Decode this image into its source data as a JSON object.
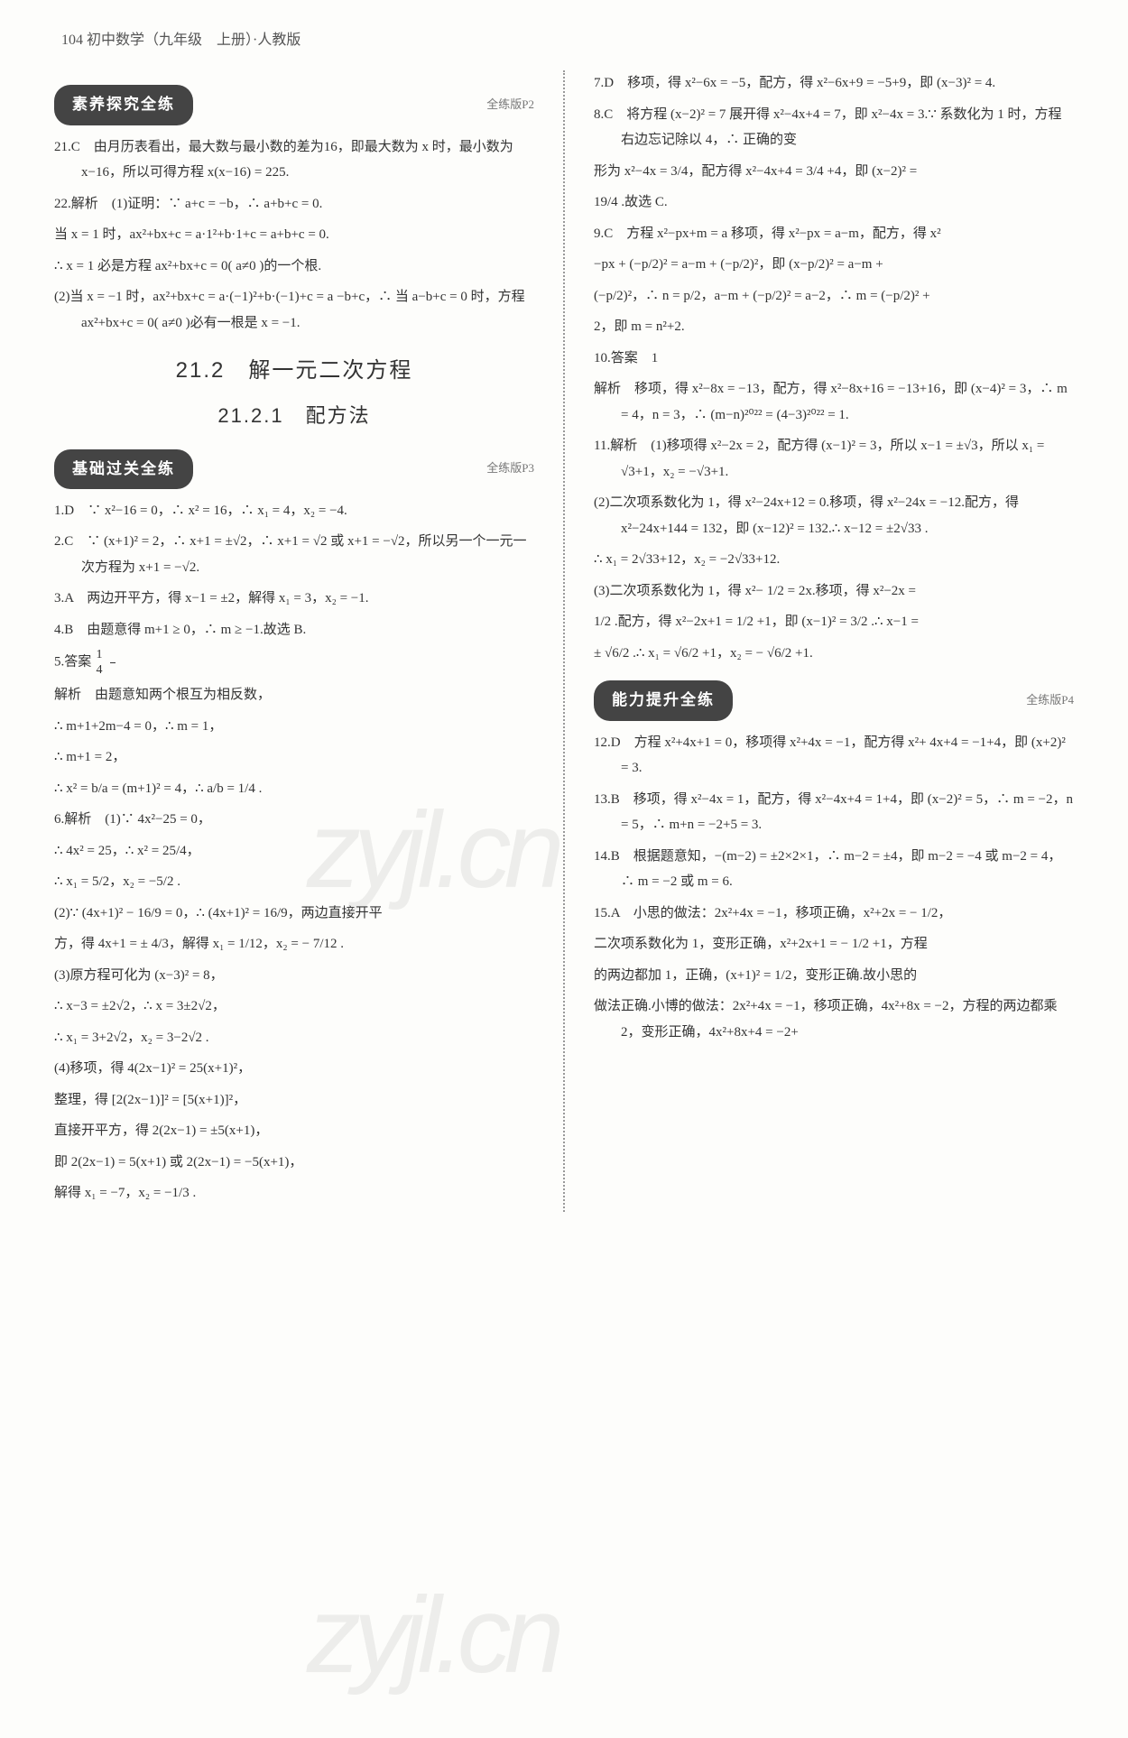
{
  "header": "104 初中数学（九年级　上册）·人教版",
  "watermark": "zyjl.cn",
  "left": {
    "badge1": {
      "label": "素养探究全练",
      "ref": "全练版P2"
    },
    "q21": "21.C　由月历表看出，最大数与最小数的差为16，即最大数为 x 时，最小数为 x−16，所以可得方程 x(x−16) = 225.",
    "q22a": "22.解析　(1)证明：∵ a+c = −b，∴ a+b+c = 0.",
    "q22b": "当 x = 1 时，ax²+bx+c = a·1²+b·1+c = a+b+c = 0.",
    "q22c": "∴ x = 1 必是方程 ax²+bx+c = 0( a≠0 )的一个根.",
    "q22d": "(2)当 x = −1 时，ax²+bx+c = a·(−1)²+b·(−1)+c = a −b+c，∴ 当 a−b+c = 0 时，方程 ax²+bx+c = 0( a≠0 )必有一根是 x = −1.",
    "title": "21.2　解一元二次方程",
    "subtitle": "21.2.1　配方法",
    "badge2": {
      "label": "基础过关全练",
      "ref": "全练版P3"
    },
    "q1": "1.D　∵ x²−16 = 0，∴ x² = 16，∴ x₁ = 4，x₂ = −4.",
    "q2": "2.C　∵ (x+1)² = 2，∴ x+1 = ±√2，∴ x+1 = √2 或 x+1 = −√2，所以另一个一元一次方程为 x+1 = −√2.",
    "q3": "3.A　两边开平方，得 x−1 = ±2，解得 x₁ = 3，x₂ = −1.",
    "q4": "4.B　由题意得 m+1 ≥ 0，∴ m ≥ −1.故选 B.",
    "q5a_label": "5.答案　",
    "q5a_frac_n": "1",
    "q5a_frac_d": "4",
    "q5b": "解析　由题意知两个根互为相反数，",
    "q5c": "∴ m+1+2m−4 = 0，∴ m = 1，",
    "q5d": "∴ m+1 = 2，",
    "q5e": "∴ x² = b/a = (m+1)² = 4，∴ a/b = 1/4 .",
    "q6a": "6.解析　(1)∵ 4x²−25 = 0，",
    "q6b": "∴ 4x² = 25，∴ x² = 25/4，",
    "q6c": "∴ x₁ = 5/2，x₂ = −5/2 .",
    "q6d": "(2)∵ (4x+1)² − 16/9 = 0，∴ (4x+1)² = 16/9，两边直接开平",
    "q6e": "方，得 4x+1 = ± 4/3，解得 x₁ = 1/12，x₂ = − 7/12 .",
    "q6f": "(3)原方程可化为 (x−3)² = 8，",
    "q6g": "∴ x−3 = ±2√2，∴ x = 3±2√2，",
    "q6h": "∴ x₁ = 3+2√2，x₂ = 3−2√2 .",
    "q6i": "(4)移项，得 4(2x−1)² = 25(x+1)²，",
    "q6j": "整理，得 [2(2x−1)]² = [5(x+1)]²，",
    "q6k": "直接开平方，得 2(2x−1) = ±5(x+1)，",
    "q6l": "即 2(2x−1) = 5(x+1) 或 2(2x−1) = −5(x+1)，",
    "q6m": "解得 x₁ = −7，x₂ = −1/3 ."
  },
  "right": {
    "q7": "7.D　移项，得 x²−6x = −5，配方，得 x²−6x+9 = −5+9，即 (x−3)² = 4.",
    "q8a": "8.C　将方程 (x−2)² = 7 展开得 x²−4x+4 = 7，即 x²−4x = 3.∵ 系数化为 1 时，方程右边忘记除以 4，∴ 正确的变",
    "q8b": "形为 x²−4x = 3/4，配方得 x²−4x+4 = 3/4 +4，即 (x−2)² =",
    "q8c": "19/4 .故选 C.",
    "q9a": "9.C　方程 x²−px+m = a 移项，得 x²−px = a−m，配方，得 x²",
    "q9b": "−px + (−p/2)² = a−m + (−p/2)²，即 (x−p/2)² = a−m +",
    "q9c": "(−p/2)²，∴ n = p/2，a−m + (−p/2)² = a−2，∴ m = (−p/2)² +",
    "q9d": "2，即 m = n²+2.",
    "q10a": "10.答案　1",
    "q10b": "解析　移项，得 x²−8x = −13，配方，得 x²−8x+16 = −13+16，即 (x−4)² = 3，∴ m = 4，n = 3，∴ (m−n)²⁰²² = (4−3)²⁰²² = 1.",
    "q11a": "11.解析　(1)移项得 x²−2x = 2，配方得 (x−1)² = 3，所以 x−1 = ±√3，所以 x₁ = √3+1，x₂ = −√3+1.",
    "q11b": "(2)二次项系数化为 1，得 x²−24x+12 = 0.移项，得 x²−24x = −12.配方，得 x²−24x+144 = 132，即 (x−12)² = 132.∴ x−12 = ±2√33 .",
    "q11c": "∴ x₁ = 2√33+12，x₂ = −2√33+12.",
    "q11d": "(3)二次项系数化为 1，得 x²− 1/2 = 2x.移项，得 x²−2x =",
    "q11e": "1/2 .配方，得 x²−2x+1 = 1/2 +1，即 (x−1)² = 3/2 .∴ x−1 =",
    "q11f": "± √6/2 .∴ x₁ = √6/2 +1，x₂ = − √6/2 +1.",
    "badge3": {
      "label": "能力提升全练",
      "ref": "全练版P4"
    },
    "q12": "12.D　方程 x²+4x+1 = 0，移项得 x²+4x = −1，配方得 x²+ 4x+4 = −1+4，即 (x+2)² = 3.",
    "q13": "13.B　移项，得 x²−4x = 1，配方，得 x²−4x+4 = 1+4，即 (x−2)² = 5，∴ m = −2，n = 5，∴ m+n = −2+5 = 3.",
    "q14": "14.B　根据题意知，−(m−2) = ±2×2×1，∴ m−2 = ±4，即 m−2 = −4 或 m−2 = 4，∴ m = −2 或 m = 6.",
    "q15a": "15.A　小思的做法：2x²+4x = −1，移项正确，x²+2x = − 1/2，",
    "q15b": "二次项系数化为 1，变形正确，x²+2x+1 = − 1/2 +1，方程",
    "q15c": "的两边都加 1，正确，(x+1)² = 1/2，变形正确.故小思的",
    "q15d": "做法正确.小博的做法：2x²+4x = −1，移项正确，4x²+8x = −2，方程的两边都乘 2，变形正确，4x²+8x+4 = −2+"
  }
}
